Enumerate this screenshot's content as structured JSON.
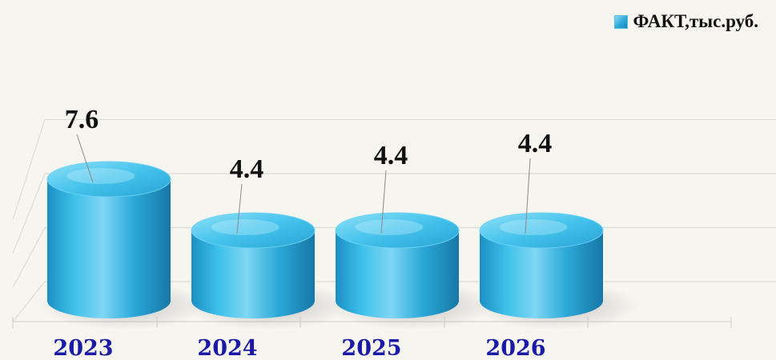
{
  "chart_data": {
    "type": "bar",
    "categories": [
      "2023",
      "2024",
      "2025",
      "2026"
    ],
    "series": [
      {
        "name": "ФАКТ,тыс.руб.",
        "values": [
          7.6,
          4.4,
          4.4,
          4.4
        ]
      }
    ],
    "data_labels": [
      "7.6",
      "4.4",
      "4.4",
      "4.4"
    ],
    "ylim": [
      0,
      10
    ],
    "grid": true,
    "legend_position": "top-right",
    "colors": {
      "bar": "#2aa8d8",
      "bar_light": "#9de3f7",
      "bar_dark": "#1782b0",
      "category_label": "#1a1aa6",
      "data_label": "#111111"
    }
  }
}
